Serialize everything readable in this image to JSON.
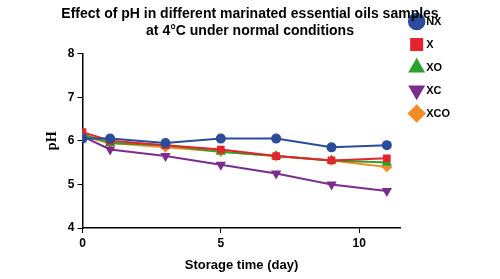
{
  "chart_data": {
    "type": "line",
    "title": "Effect of pH in different marinated essential oils samples\nat 4°C under normal conditions",
    "x_label": "Storage time (day)",
    "y_label": "pH",
    "x": [
      0,
      1,
      3,
      5,
      7,
      9,
      11
    ],
    "series": [
      {
        "name": "NX",
        "color": "#2b4c9b",
        "marker": "circle",
        "values": [
          6.05,
          6.05,
          5.95,
          6.05,
          6.05,
          5.85,
          5.9
        ]
      },
      {
        "name": "X",
        "color": "#e3242b",
        "marker": "square",
        "values": [
          6.2,
          6.0,
          5.9,
          5.8,
          5.65,
          5.55,
          5.6
        ]
      },
      {
        "name": "XO",
        "color": "#2ca02c",
        "marker": "triangle",
        "values": [
          6.15,
          5.95,
          5.9,
          5.75,
          5.65,
          5.55,
          5.5
        ]
      },
      {
        "name": "XC",
        "color": "#7b2d8e",
        "marker": "triangle_down",
        "values": [
          6.1,
          5.8,
          5.65,
          5.45,
          5.25,
          5.0,
          4.85
        ]
      },
      {
        "name": "XCO",
        "color": "#f28c28",
        "marker": "diamond",
        "values": [
          6.1,
          5.95,
          5.85,
          5.75,
          5.65,
          5.55,
          5.4
        ]
      }
    ],
    "xlim": [
      0,
      11.5
    ],
    "xticks": [
      0,
      5,
      10
    ],
    "ylim": [
      4,
      8
    ],
    "yticks": [
      4,
      5,
      6,
      7,
      8
    ],
    "grid": false,
    "legend": "right"
  }
}
